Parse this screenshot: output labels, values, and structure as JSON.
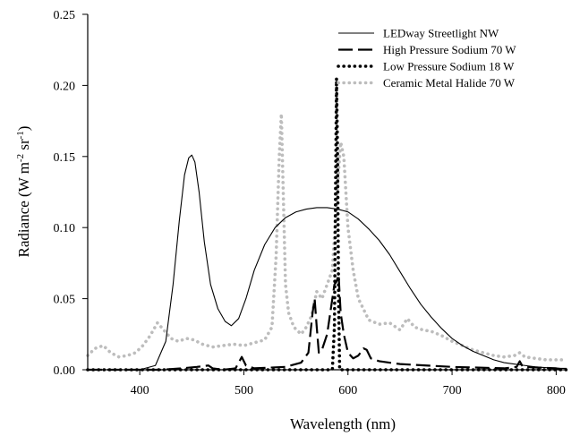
{
  "chart_data": {
    "type": "line",
    "title": "",
    "xlabel": "Wavelength (nm)",
    "ylabel": "Radiance (W m-2 sr-1)",
    "ylabel_parts": {
      "main": "Radiance (W m",
      "exp1": "-2",
      "mid": " sr",
      "exp2": "-1",
      "end": ")"
    },
    "xlim": [
      350,
      810
    ],
    "ylim": [
      0,
      0.25
    ],
    "xticks": [
      400,
      500,
      600,
      700,
      800
    ],
    "yticks": [
      0.0,
      0.05,
      0.1,
      0.15,
      0.2,
      0.25
    ],
    "ytick_labels": [
      "0.00",
      "0.05",
      "0.10",
      "0.15",
      "0.20",
      "0.25"
    ],
    "grid": false,
    "legend_position": "top-right",
    "series": [
      {
        "name": "LEDway Streetlight NW",
        "style": "solid",
        "color": "#000000",
        "points": [
          [
            350,
            0.0
          ],
          [
            400,
            0.0
          ],
          [
            415,
            0.003
          ],
          [
            425,
            0.02
          ],
          [
            432,
            0.06
          ],
          [
            438,
            0.105
          ],
          [
            443,
            0.137
          ],
          [
            447,
            0.149
          ],
          [
            450,
            0.151
          ],
          [
            453,
            0.146
          ],
          [
            457,
            0.125
          ],
          [
            462,
            0.09
          ],
          [
            468,
            0.06
          ],
          [
            475,
            0.043
          ],
          [
            482,
            0.034
          ],
          [
            488,
            0.031
          ],
          [
            495,
            0.036
          ],
          [
            502,
            0.05
          ],
          [
            510,
            0.07
          ],
          [
            520,
            0.088
          ],
          [
            530,
            0.1
          ],
          [
            540,
            0.107
          ],
          [
            550,
            0.111
          ],
          [
            560,
            0.113
          ],
          [
            570,
            0.114
          ],
          [
            580,
            0.114
          ],
          [
            590,
            0.113
          ],
          [
            600,
            0.111
          ],
          [
            610,
            0.106
          ],
          [
            620,
            0.099
          ],
          [
            630,
            0.091
          ],
          [
            640,
            0.081
          ],
          [
            650,
            0.069
          ],
          [
            660,
            0.057
          ],
          [
            670,
            0.046
          ],
          [
            680,
            0.037
          ],
          [
            690,
            0.029
          ],
          [
            700,
            0.022
          ],
          [
            710,
            0.017
          ],
          [
            720,
            0.013
          ],
          [
            730,
            0.01
          ],
          [
            740,
            0.007
          ],
          [
            750,
            0.005
          ],
          [
            760,
            0.004
          ],
          [
            770,
            0.003
          ],
          [
            780,
            0.002
          ],
          [
            800,
            0.001
          ],
          [
            810,
            0.001
          ]
        ]
      },
      {
        "name": "High Pressure Sodium 70 W",
        "style": "dashed",
        "color": "#000000",
        "points": [
          [
            350,
            0.0
          ],
          [
            420,
            0.0
          ],
          [
            440,
            0.001
          ],
          [
            455,
            0.002
          ],
          [
            466,
            0.003
          ],
          [
            470,
            0.001
          ],
          [
            480,
            0.0
          ],
          [
            492,
            0.001
          ],
          [
            498,
            0.009
          ],
          [
            502,
            0.003
          ],
          [
            510,
            0.001
          ],
          [
            540,
            0.002
          ],
          [
            555,
            0.005
          ],
          [
            562,
            0.012
          ],
          [
            566,
            0.04
          ],
          [
            568,
            0.05
          ],
          [
            570,
            0.03
          ],
          [
            572,
            0.012
          ],
          [
            575,
            0.014
          ],
          [
            580,
            0.025
          ],
          [
            584,
            0.045
          ],
          [
            587,
            0.06
          ],
          [
            589,
            0.062
          ],
          [
            591,
            0.067
          ],
          [
            593,
            0.04
          ],
          [
            596,
            0.025
          ],
          [
            600,
            0.012
          ],
          [
            605,
            0.008
          ],
          [
            610,
            0.01
          ],
          [
            615,
            0.015
          ],
          [
            618,
            0.014
          ],
          [
            622,
            0.008
          ],
          [
            630,
            0.006
          ],
          [
            650,
            0.004
          ],
          [
            700,
            0.002
          ],
          [
            750,
            0.001
          ],
          [
            762,
            0.002
          ],
          [
            765,
            0.006
          ],
          [
            768,
            0.002
          ],
          [
            800,
            0.001
          ],
          [
            810,
            0.0
          ]
        ]
      },
      {
        "name": "Low Pressure Sodium 18 W",
        "style": "dotted",
        "color": "#000000",
        "points": [
          [
            350,
            0.0
          ],
          [
            585,
            0.0
          ],
          [
            587,
            0.03
          ],
          [
            589,
            0.205
          ],
          [
            590,
            0.15
          ],
          [
            591,
            0.05
          ],
          [
            592,
            0.0
          ],
          [
            810,
            0.0
          ]
        ]
      },
      {
        "name": "Ceramic Metal Halide 70 W",
        "style": "dotted",
        "color": "#bdbdbd",
        "points": [
          [
            350,
            0.01
          ],
          [
            357,
            0.015
          ],
          [
            365,
            0.017
          ],
          [
            372,
            0.012
          ],
          [
            380,
            0.009
          ],
          [
            388,
            0.01
          ],
          [
            396,
            0.012
          ],
          [
            403,
            0.017
          ],
          [
            410,
            0.024
          ],
          [
            417,
            0.033
          ],
          [
            423,
            0.028
          ],
          [
            430,
            0.022
          ],
          [
            437,
            0.02
          ],
          [
            445,
            0.022
          ],
          [
            452,
            0.021
          ],
          [
            460,
            0.018
          ],
          [
            470,
            0.016
          ],
          [
            480,
            0.017
          ],
          [
            490,
            0.018
          ],
          [
            500,
            0.017
          ],
          [
            510,
            0.019
          ],
          [
            520,
            0.021
          ],
          [
            527,
            0.03
          ],
          [
            531,
            0.08
          ],
          [
            534,
            0.15
          ],
          [
            536,
            0.18
          ],
          [
            538,
            0.12
          ],
          [
            540,
            0.06
          ],
          [
            543,
            0.04
          ],
          [
            548,
            0.03
          ],
          [
            555,
            0.025
          ],
          [
            560,
            0.03
          ],
          [
            565,
            0.038
          ],
          [
            570,
            0.055
          ],
          [
            575,
            0.05
          ],
          [
            580,
            0.06
          ],
          [
            585,
            0.07
          ],
          [
            590,
            0.13
          ],
          [
            593,
            0.16
          ],
          [
            596,
            0.15
          ],
          [
            600,
            0.1
          ],
          [
            605,
            0.07
          ],
          [
            610,
            0.05
          ],
          [
            620,
            0.035
          ],
          [
            630,
            0.032
          ],
          [
            640,
            0.033
          ],
          [
            650,
            0.028
          ],
          [
            657,
            0.036
          ],
          [
            664,
            0.03
          ],
          [
            672,
            0.028
          ],
          [
            680,
            0.027
          ],
          [
            690,
            0.024
          ],
          [
            700,
            0.02
          ],
          [
            710,
            0.017
          ],
          [
            720,
            0.014
          ],
          [
            730,
            0.012
          ],
          [
            740,
            0.01
          ],
          [
            750,
            0.009
          ],
          [
            760,
            0.01
          ],
          [
            765,
            0.012
          ],
          [
            770,
            0.009
          ],
          [
            780,
            0.008
          ],
          [
            790,
            0.007
          ],
          [
            800,
            0.007
          ],
          [
            810,
            0.007
          ]
        ]
      }
    ]
  }
}
